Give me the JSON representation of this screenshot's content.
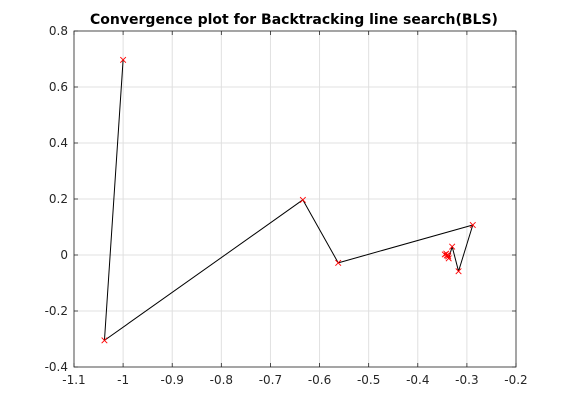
{
  "chart_data": {
    "type": "line",
    "title": "Convergence plot for Backtracking line search(BLS)",
    "xlabel": "",
    "ylabel": "",
    "xlim": [
      -1.1,
      -0.2
    ],
    "ylim": [
      -0.4,
      0.8
    ],
    "x_ticks": [
      -1.1,
      -1.0,
      -0.9,
      -0.8,
      -0.7,
      -0.6,
      -0.5,
      -0.4,
      -0.3,
      -0.2
    ],
    "x_tick_labels": [
      "-1.1",
      "-1",
      "-0.9",
      "-0.8",
      "-0.7",
      "-0.6",
      "-0.5",
      "-0.4",
      "-0.3",
      "-0.2"
    ],
    "y_ticks": [
      -0.4,
      -0.2,
      0.0,
      0.2,
      0.4,
      0.6,
      0.8
    ],
    "y_tick_labels": [
      "-0.4",
      "-0.2",
      "0",
      "0.2",
      "0.4",
      "0.6",
      "0.8"
    ],
    "grid": true,
    "line_color": "#000000",
    "marker": "x",
    "marker_color": "#ff0000",
    "points": [
      {
        "x": -1.0,
        "y": 0.697
      },
      {
        "x": -1.038,
        "y": -0.305
      },
      {
        "x": -0.634,
        "y": 0.197
      },
      {
        "x": -0.562,
        "y": -0.028
      },
      {
        "x": -0.288,
        "y": 0.107
      },
      {
        "x": -0.317,
        "y": -0.058
      },
      {
        "x": -0.33,
        "y": 0.03
      },
      {
        "x": -0.337,
        "y": -0.012
      },
      {
        "x": -0.342,
        "y": 0.005
      },
      {
        "x": -0.338,
        "y": -0.005
      },
      {
        "x": -0.345,
        "y": 0.002
      },
      {
        "x": -0.339,
        "y": 0.0
      },
      {
        "x": -0.341,
        "y": -0.002
      }
    ]
  }
}
